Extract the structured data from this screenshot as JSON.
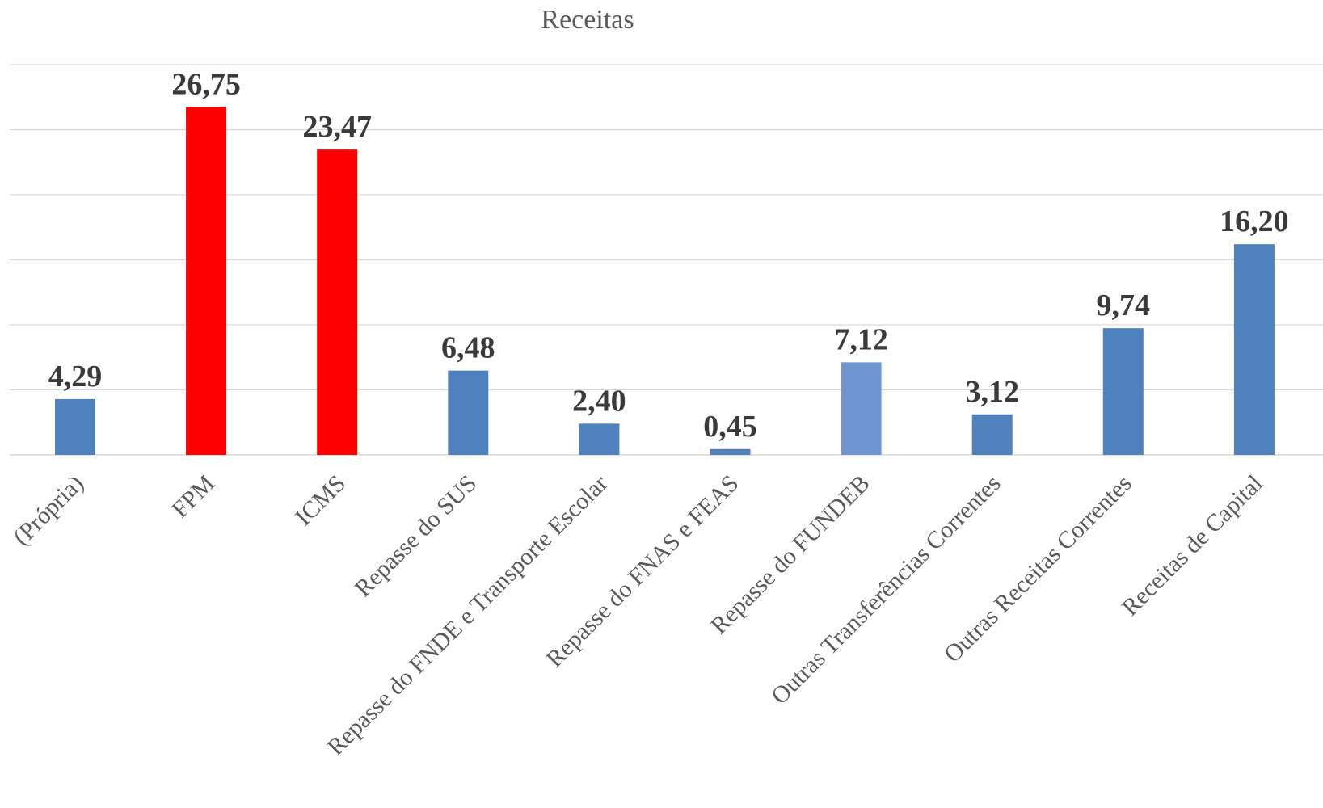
{
  "chart_data": {
    "type": "bar",
    "title": "Receitas",
    "xlabel": "",
    "ylabel": "",
    "ylim": [
      0,
      30
    ],
    "grid": true,
    "gridline_step": 5,
    "categories": [
      "(Própria)",
      "FPM",
      "ICMS",
      "Repasse do SUS",
      "Repasse do FNDE e Transporte Escolar",
      "Repasse do FNAS e FEAS",
      "Repasse do FUNDEB",
      "Outras Transferências Correntes",
      "Outras Receitas Correntes",
      "Receitas de Capital"
    ],
    "values": [
      4.29,
      26.75,
      23.47,
      6.48,
      2.4,
      0.45,
      7.12,
      3.12,
      9.74,
      16.2
    ],
    "value_labels": [
      "4,29",
      "26,75",
      "23,47",
      "6,48",
      "2,40",
      "0,45",
      "7,12",
      "3,12",
      "9,74",
      "16,20"
    ],
    "bar_colors": [
      "#4f81bd",
      "#ff0000",
      "#ff0000",
      "#4f81bd",
      "#4f81bd",
      "#4f81bd",
      "#7096d2",
      "#4f81bd",
      "#4f81bd",
      "#4f81bd"
    ]
  }
}
